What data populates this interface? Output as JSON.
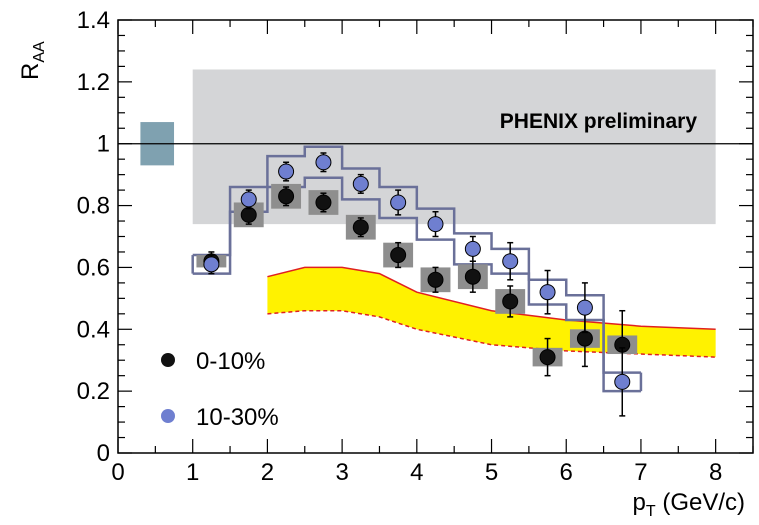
{
  "chart_data": {
    "type": "scatter",
    "xlabel": "p",
    "xlabel_sub": "T",
    "xlabel_unit": " (GeV/c)",
    "ylabel": "R",
    "ylabel_sub": "AA",
    "xlim": [
      0,
      8.5
    ],
    "ylim": [
      0,
      1.4
    ],
    "x_ticks": [
      "0",
      "1",
      "2",
      "3",
      "4",
      "5",
      "6",
      "7",
      "8"
    ],
    "y_ticks": [
      "0",
      "0.2",
      "0.4",
      "0.6",
      "0.8",
      "1",
      "1.2",
      "1.4"
    ],
    "grid": false,
    "legend_position": "bottom-left",
    "annotation": "PHENIX preliminary",
    "reference_line": 1.0,
    "colors": {
      "series_0_10": "#111111",
      "series_10_30": "#6f7fd0",
      "band_gray": "#d4d5d7",
      "box_gray": "#8e8e8e",
      "global_norm_box": "#7fa1b0",
      "step_outline": "#6a7099",
      "theory_band": "#fff200",
      "theory_line": "#e02020"
    },
    "global_band": {
      "x": [
        1.0,
        8.0
      ],
      "y": [
        0.74,
        1.24
      ]
    },
    "norm_box": {
      "x": [
        0.3,
        0.75
      ],
      "y": [
        0.93,
        1.07
      ]
    },
    "series": [
      {
        "name": "0-10%",
        "x": [
          1.25,
          1.75,
          2.25,
          2.75,
          3.25,
          3.75,
          4.25,
          4.75,
          5.25,
          5.75,
          6.25,
          6.75
        ],
        "y": [
          0.62,
          0.77,
          0.83,
          0.81,
          0.73,
          0.64,
          0.56,
          0.57,
          0.49,
          0.31,
          0.37,
          0.35
        ],
        "err": [
          0.03,
          0.03,
          0.03,
          0.03,
          0.03,
          0.04,
          0.04,
          0.05,
          0.05,
          0.06,
          0.09,
          0.11
        ],
        "sys_box": [
          0.02,
          0.04,
          0.04,
          0.04,
          0.04,
          0.04,
          0.04,
          0.04,
          0.04,
          0.03,
          0.03,
          0.03
        ]
      },
      {
        "name": "10-30%",
        "x": [
          1.25,
          1.75,
          2.25,
          2.75,
          3.25,
          3.75,
          4.25,
          4.75,
          5.25,
          5.75,
          6.25,
          6.75
        ],
        "y": [
          0.61,
          0.82,
          0.91,
          0.94,
          0.87,
          0.81,
          0.74,
          0.66,
          0.62,
          0.52,
          0.47,
          0.23
        ],
        "err": [
          0.03,
          0.03,
          0.03,
          0.03,
          0.03,
          0.04,
          0.04,
          0.04,
          0.06,
          0.07,
          0.08,
          0.11
        ],
        "sys_box": [
          0.03,
          0.04,
          0.05,
          0.05,
          0.05,
          0.05,
          0.05,
          0.05,
          0.04,
          0.04,
          0.04,
          0.03
        ]
      }
    ],
    "theory_band": {
      "x": [
        2.0,
        2.5,
        3.0,
        3.5,
        4.0,
        5.0,
        6.0,
        7.0,
        8.0
      ],
      "upper": [
        0.57,
        0.6,
        0.6,
        0.58,
        0.52,
        0.46,
        0.43,
        0.41,
        0.4
      ],
      "lower": [
        0.45,
        0.46,
        0.46,
        0.44,
        0.4,
        0.35,
        0.33,
        0.32,
        0.31
      ]
    }
  }
}
